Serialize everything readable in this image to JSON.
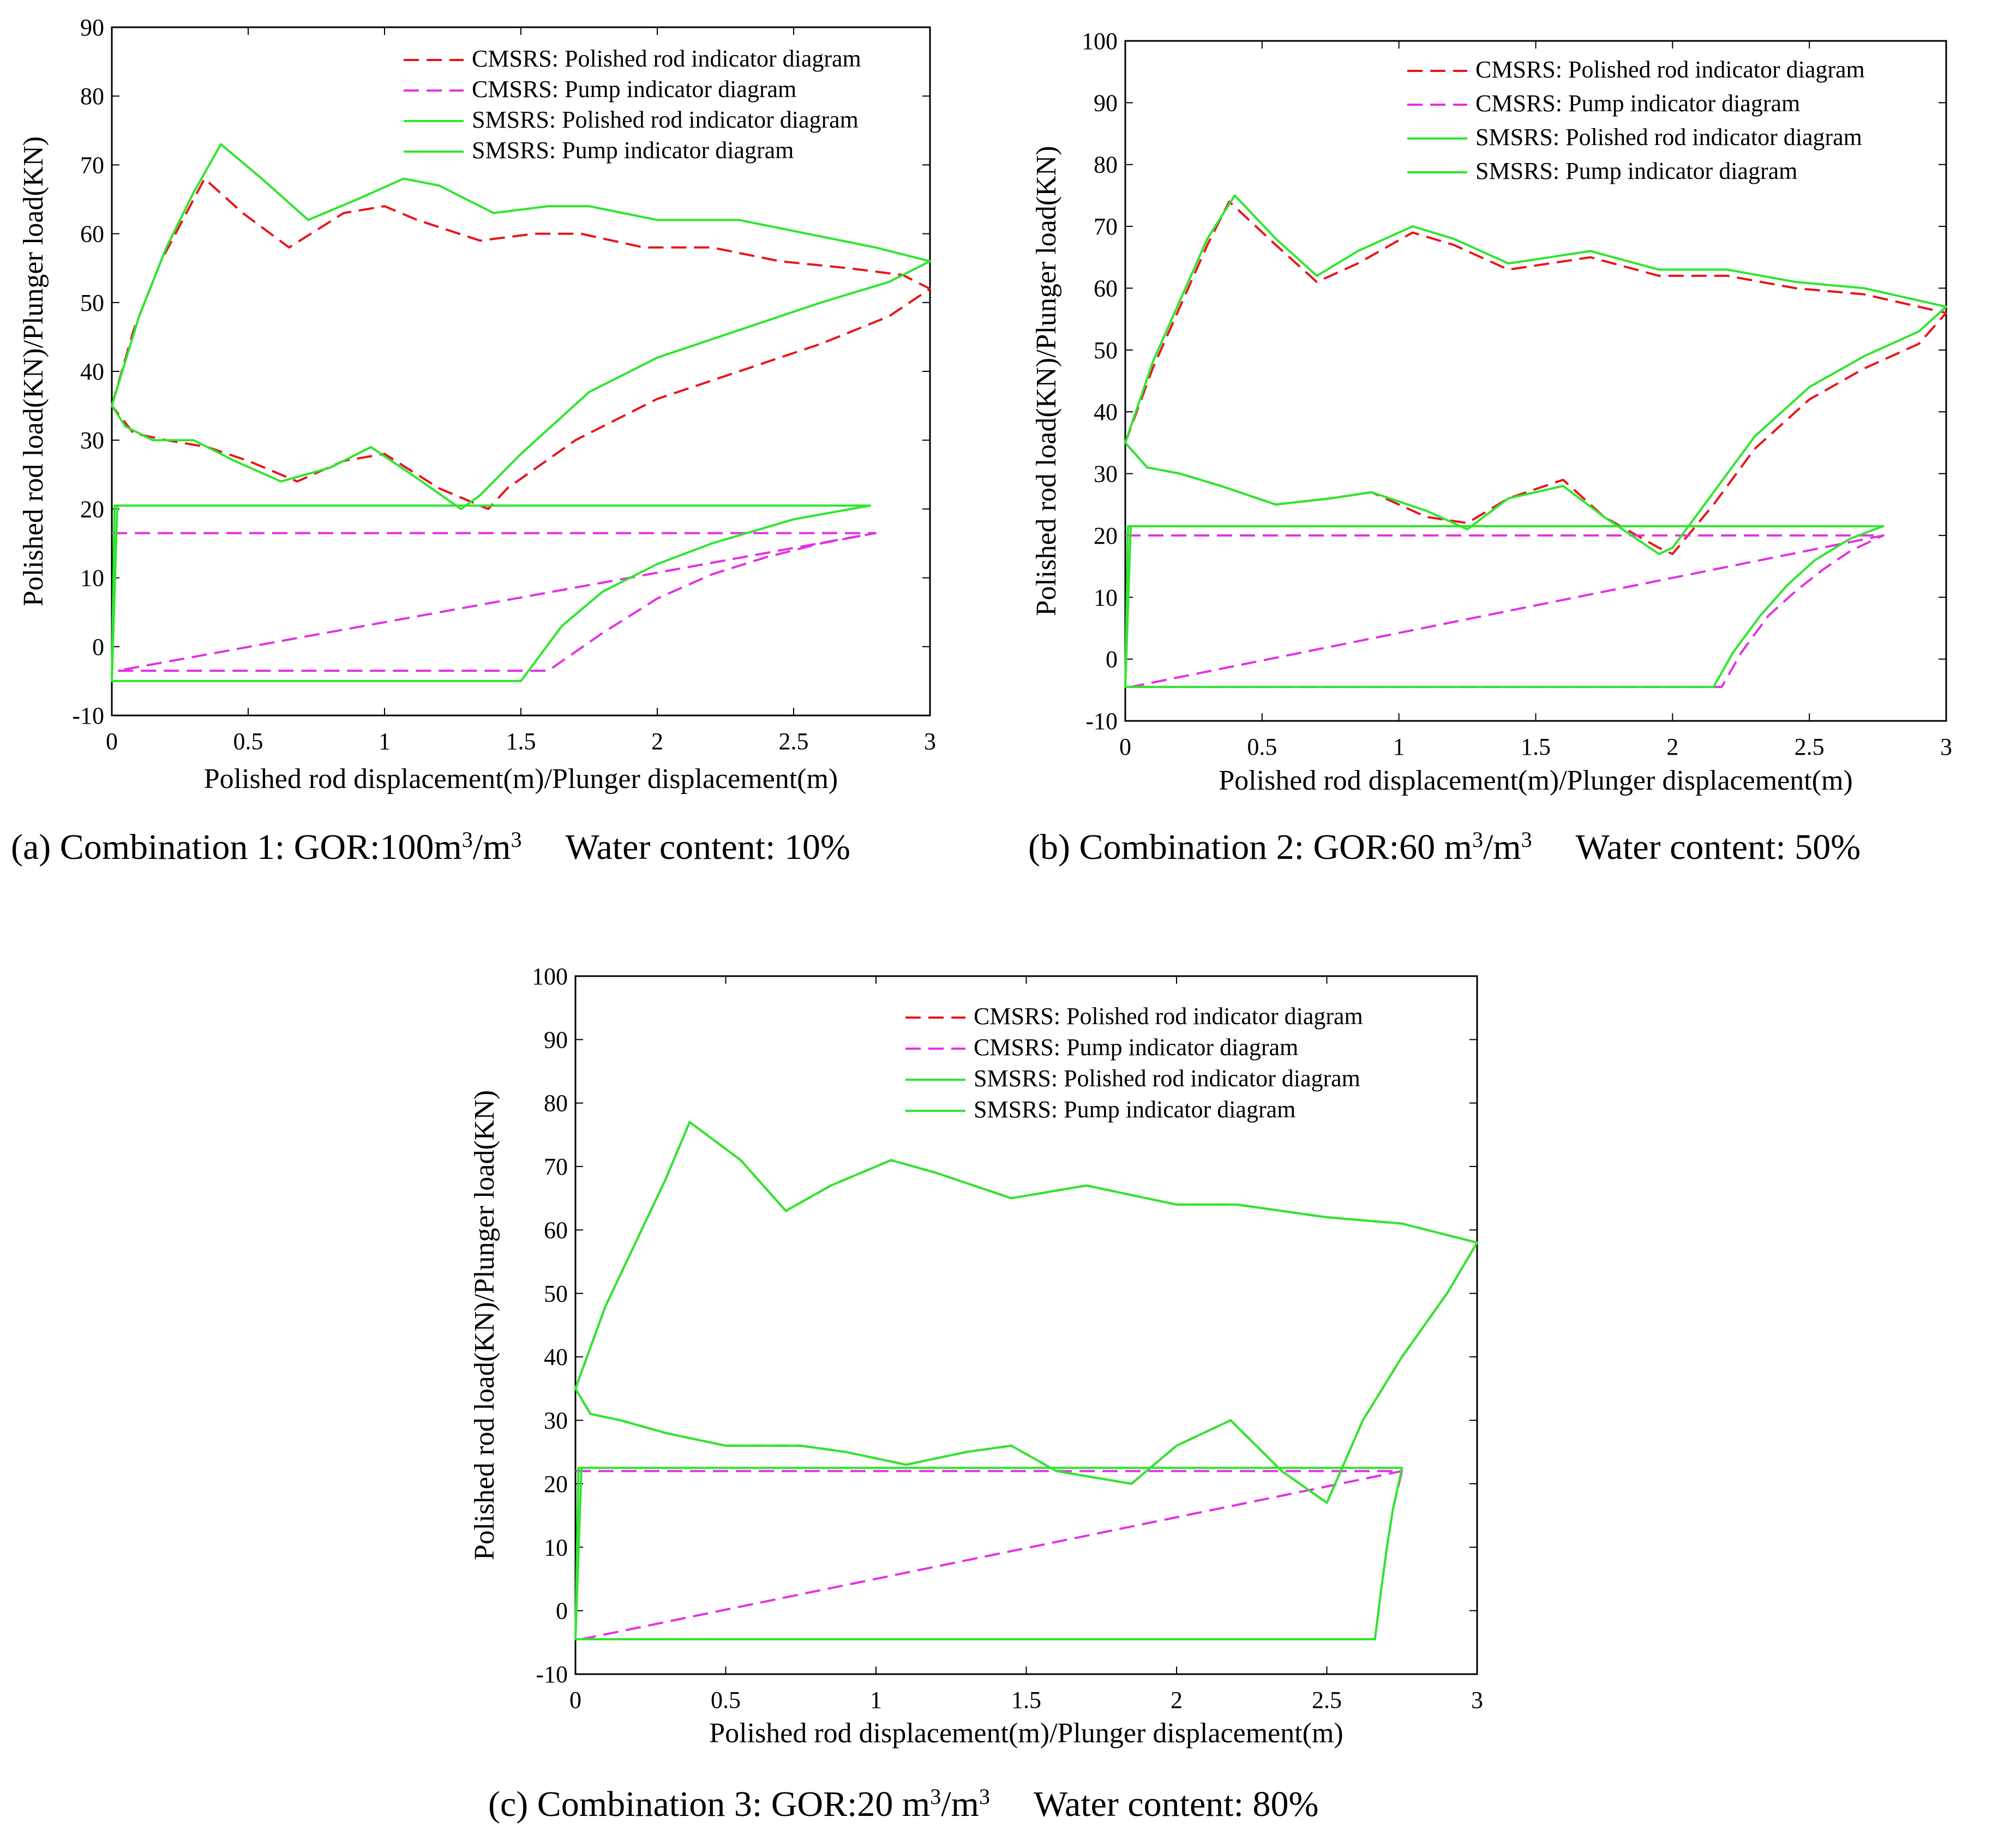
{
  "figure": {
    "series_styles": [
      {
        "color": "#e8141c",
        "dash": "28,14"
      },
      {
        "color": "#e331e3",
        "dash": "28,14"
      },
      {
        "color": "#2ee62e",
        "dash": ""
      },
      {
        "color": "#2ee62e",
        "dash": ""
      }
    ]
  },
  "chart_data": [
    {
      "type": "line",
      "caption": {
        "prefix": "(a) Combination 1: GOR:100m",
        "sup": "3",
        "mid": "/m",
        "sup2": "3",
        "suffix": "Water content: 10%"
      },
      "xlabel": "Polished rod displacement(m)/Plunger displacement(m)",
      "ylabel": "Polished rod load(KN)/Plunger load(KN)",
      "xlim": [
        0,
        3
      ],
      "ylim": [
        -10,
        90
      ],
      "xticks": [
        0,
        0.5,
        1,
        1.5,
        2,
        2.5,
        3
      ],
      "yticks": [
        -10,
        0,
        10,
        20,
        30,
        40,
        50,
        60,
        70,
        80,
        90
      ],
      "legend_position": "top-right",
      "series": [
        {
          "name": "CMSRS: Polished rod indicator diagram",
          "x": [
            0,
            0.08,
            0.18,
            0.34,
            0.48,
            0.65,
            0.85,
            1.0,
            1.12,
            1.35,
            1.55,
            1.72,
            1.95,
            2.2,
            2.45,
            2.7,
            2.9,
            3.0,
            2.85,
            2.6,
            2.3,
            2.0,
            1.7,
            1.45,
            1.38,
            1.2,
            1.0,
            0.85,
            0.68,
            0.5,
            0.35,
            0.2,
            0.08,
            0
          ],
          "y": [
            35,
            46,
            56,
            68,
            63,
            58,
            63,
            64,
            62,
            59,
            60,
            60,
            58,
            58,
            56,
            55,
            54,
            52,
            48,
            44,
            40,
            36,
            30,
            23,
            20,
            23,
            28,
            27,
            24,
            27,
            29,
            30,
            31,
            35
          ]
        },
        {
          "name": "CMSRS: Pump indicator diagram",
          "x": [
            0,
            2.8,
            0.02,
            1.6,
            1.8,
            2.0,
            2.2,
            2.4,
            2.6,
            2.8
          ],
          "y": [
            16.5,
            16.5,
            -3.5,
            -3.5,
            2,
            7,
            10.5,
            13,
            15,
            16.5
          ]
        },
        {
          "name": "SMSRS: Polished rod indicator diagram",
          "x": [
            0,
            0.1,
            0.2,
            0.3,
            0.4,
            0.55,
            0.72,
            0.9,
            1.07,
            1.2,
            1.4,
            1.6,
            1.75,
            2.0,
            2.3,
            2.55,
            2.8,
            3.0,
            2.85,
            2.6,
            2.3,
            2.0,
            1.75,
            1.5,
            1.35,
            1.28,
            1.1,
            0.95,
            0.8,
            0.62,
            0.45,
            0.3,
            0.15,
            0.05,
            0
          ],
          "y": [
            35,
            48,
            58,
            66,
            73,
            68,
            62,
            65,
            68,
            67,
            63,
            64,
            64,
            62,
            62,
            60,
            58,
            56,
            53,
            50,
            46,
            42,
            37,
            28,
            22,
            20,
            25,
            29,
            26,
            24,
            27,
            30,
            30,
            32,
            35
          ]
        },
        {
          "name": "SMSRS: Pump indicator diagram",
          "x": [
            0,
            0.02,
            2.78,
            1.5,
            0.01,
            0,
            1.5,
            1.65,
            1.8,
            2.0,
            2.2,
            2.5,
            2.78
          ],
          "y": [
            -5,
            20.5,
            20.5,
            20.5,
            20.5,
            -5,
            -5,
            3,
            8,
            12,
            15,
            18.5,
            20.5
          ]
        }
      ]
    },
    {
      "type": "line",
      "caption": {
        "prefix": "(b) Combination 2: GOR:60 m",
        "sup": "3",
        "mid": "/m",
        "sup2": "3",
        "suffix": "Water content: 50%"
      },
      "xlabel": "Polished rod displacement(m)/Plunger displacement(m)",
      "ylabel": "Polished rod load(KN)/Plunger load(KN)",
      "xlim": [
        0,
        3
      ],
      "ylim": [
        -10,
        100
      ],
      "xticks": [
        0,
        0.5,
        1,
        1.5,
        2,
        2.5,
        3
      ],
      "yticks": [
        -10,
        0,
        10,
        20,
        30,
        40,
        50,
        60,
        70,
        80,
        90,
        100
      ],
      "legend_position": "top-right",
      "series": [
        {
          "name": "CMSRS: Polished rod indicator diagram",
          "x": [
            0,
            0.1,
            0.2,
            0.3,
            0.38,
            0.55,
            0.7,
            0.85,
            1.05,
            1.2,
            1.4,
            1.55,
            1.7,
            1.95,
            2.2,
            2.45,
            2.7,
            2.9,
            3.0,
            2.9,
            2.7,
            2.5,
            2.3,
            2.15,
            2.0,
            1.95,
            1.75,
            1.6,
            1.4,
            1.25,
            1.1,
            0.9,
            0.75,
            0.55,
            0.35,
            0.2,
            0.08,
            0
          ],
          "y": [
            35,
            47,
            57,
            67,
            74,
            67,
            61,
            64,
            69,
            67,
            63,
            64,
            65,
            62,
            62,
            60,
            59,
            57,
            56,
            51,
            47,
            42,
            34,
            25,
            17,
            18,
            23,
            29,
            26,
            22,
            23,
            27,
            26,
            25,
            28,
            30,
            31,
            35
          ]
        },
        {
          "name": "CMSRS: Pump indicator diagram",
          "x": [
            0,
            2.77,
            0.02,
            2.18,
            2.25,
            2.35,
            2.45,
            2.55,
            2.65,
            2.77
          ],
          "y": [
            20,
            20,
            -4.5,
            -4.5,
            1,
            7,
            11,
            14.5,
            17.5,
            20
          ]
        },
        {
          "name": "SMSRS: Polished rod indicator diagram",
          "x": [
            0,
            0.1,
            0.2,
            0.3,
            0.4,
            0.55,
            0.7,
            0.85,
            1.05,
            1.2,
            1.4,
            1.55,
            1.7,
            1.95,
            2.2,
            2.45,
            2.7,
            2.9,
            3.0,
            2.9,
            2.7,
            2.5,
            2.3,
            2.15,
            2.0,
            1.95,
            1.75,
            1.6,
            1.4,
            1.25,
            1.1,
            0.9,
            0.75,
            0.55,
            0.35,
            0.2,
            0.08,
            0
          ],
          "y": [
            35,
            48,
            58,
            68,
            75,
            68,
            62,
            66,
            70,
            68,
            64,
            65,
            66,
            63,
            63,
            61,
            60,
            58,
            57,
            53,
            49,
            44,
            36,
            27,
            18,
            17,
            23,
            28,
            26,
            21,
            24,
            27,
            26,
            25,
            28,
            30,
            31,
            35
          ]
        },
        {
          "name": "SMSRS: Pump indicator diagram",
          "x": [
            0,
            0.02,
            2.77,
            0.01,
            0,
            2.15,
            2.22,
            2.32,
            2.42,
            2.52,
            2.65,
            2.77
          ],
          "y": [
            -4.5,
            21.5,
            21.5,
            21.5,
            -4.5,
            -4.5,
            1,
            7,
            12,
            16,
            19.5,
            21.5
          ]
        }
      ]
    },
    {
      "type": "line",
      "caption": {
        "prefix": "(c) Combination 3: GOR:20 m",
        "sup": "3",
        "mid": "/m",
        "sup2": "3",
        "suffix": "Water content: 80%"
      },
      "xlabel": "Polished rod displacement(m)/Plunger displacement(m)",
      "ylabel": "Polished rod load(KN)/Plunger load(KN)",
      "xlim": [
        0,
        3
      ],
      "ylim": [
        -10,
        100
      ],
      "xticks": [
        0,
        0.5,
        1,
        1.5,
        2,
        2.5,
        3
      ],
      "yticks": [
        -10,
        0,
        10,
        20,
        30,
        40,
        50,
        60,
        70,
        80,
        90,
        100
      ],
      "legend_position": "top-right",
      "series": [
        {
          "name": "CMSRS: Polished rod indicator diagram",
          "x": [
            0,
            0.1,
            0.2,
            0.3,
            0.38,
            0.55,
            0.7,
            0.85,
            1.05,
            1.2,
            1.45,
            1.7,
            2.0,
            2.2,
            2.5,
            2.75,
            3.0,
            2.9,
            2.75,
            2.62,
            2.5,
            2.35,
            2.18,
            2.0,
            1.85,
            1.6,
            1.45,
            1.3,
            1.1,
            0.9,
            0.75,
            0.5,
            0.3,
            0.15,
            0.05,
            0
          ],
          "y": [
            35,
            48,
            58,
            68,
            77,
            71,
            63,
            67,
            71,
            69,
            65,
            67,
            64,
            64,
            62,
            61,
            58,
            50,
            40,
            30,
            17,
            22,
            30,
            26,
            20,
            22,
            26,
            25,
            23,
            25,
            26,
            26,
            28,
            30,
            31,
            35
          ]
        },
        {
          "name": "CMSRS: Pump indicator diagram",
          "x": [
            0,
            2.75,
            0.02,
            2.66,
            2.68,
            2.7,
            2.72,
            2.75
          ],
          "y": [
            22,
            22,
            -4.5,
            -4.5,
            3,
            10,
            16,
            22
          ]
        },
        {
          "name": "SMSRS: Polished rod indicator diagram",
          "x": [
            0,
            0.1,
            0.2,
            0.3,
            0.38,
            0.55,
            0.7,
            0.85,
            1.05,
            1.2,
            1.45,
            1.7,
            2.0,
            2.2,
            2.5,
            2.75,
            3.0,
            2.9,
            2.75,
            2.62,
            2.5,
            2.35,
            2.18,
            2.0,
            1.85,
            1.6,
            1.45,
            1.3,
            1.1,
            0.9,
            0.75,
            0.5,
            0.3,
            0.15,
            0.05,
            0
          ],
          "y": [
            35,
            48,
            58,
            68,
            77,
            71,
            63,
            67,
            71,
            69,
            65,
            67,
            64,
            64,
            62,
            61,
            58,
            50,
            40,
            30,
            17,
            22,
            30,
            26,
            20,
            22,
            26,
            25,
            23,
            25,
            26,
            26,
            28,
            30,
            31,
            35
          ]
        },
        {
          "name": "SMSRS: Pump indicator diagram",
          "x": [
            0,
            0.02,
            2.75,
            0.01,
            0,
            2.66,
            2.68,
            2.7,
            2.72,
            2.75
          ],
          "y": [
            -4.5,
            22.5,
            22.5,
            22.5,
            -4.5,
            -4.5,
            3,
            10,
            16,
            22.5
          ]
        }
      ]
    }
  ]
}
